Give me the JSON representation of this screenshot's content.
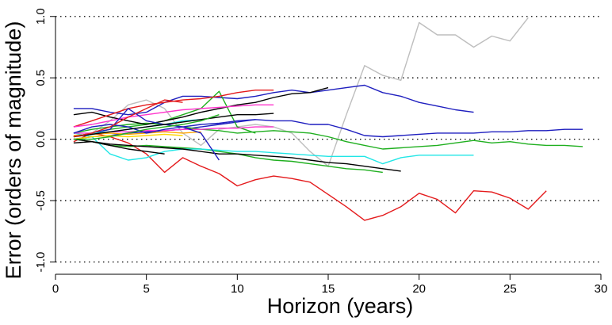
{
  "chart_data": {
    "type": "line",
    "title": "",
    "xlabel": "Horizon (years)",
    "ylabel": "Error (orders of magnitude)",
    "xlim": [
      0,
      30
    ],
    "ylim": [
      -1.1,
      1.05
    ],
    "x_ticks": [
      0,
      5,
      10,
      15,
      20,
      25,
      30
    ],
    "x_tick_labels": [
      "0",
      "5",
      "10",
      "15",
      "20",
      "25",
      "30"
    ],
    "y_ticks": [
      -1.0,
      -0.5,
      0.0,
      0.5,
      1.0
    ],
    "y_tick_labels": [
      "-1.0",
      "-0.5",
      "0.0",
      "0.5",
      "1.0"
    ],
    "reference_lines": [
      -1.0,
      -0.5,
      0.0,
      0.5,
      1.0
    ],
    "grid": false,
    "legend": "none",
    "series": [
      {
        "color": "#bebebe",
        "x": [
          1,
          2,
          3,
          4,
          5,
          6,
          7,
          8,
          9,
          10,
          11,
          12,
          13,
          14,
          15,
          16,
          17,
          18,
          19,
          20,
          21,
          22,
          23,
          24,
          25,
          26
        ],
        "y": [
          0.02,
          0.05,
          0.15,
          0.28,
          0.32,
          0.25,
          0.05,
          -0.05,
          0.08,
          0.1,
          0.12,
          0.1,
          0.05,
          -0.1,
          -0.22,
          0.2,
          0.6,
          0.52,
          0.48,
          0.95,
          0.85,
          0.85,
          0.75,
          0.84,
          0.8,
          0.99
        ]
      },
      {
        "color": "#e41a1c",
        "x": [
          1,
          2,
          3,
          4,
          5,
          6,
          7,
          8,
          9,
          10,
          11,
          12,
          13,
          14,
          15,
          16,
          17,
          18,
          19,
          20,
          21,
          22,
          23,
          24,
          25,
          26,
          27
        ],
        "y": [
          -0.02,
          0.05,
          0.02,
          -0.03,
          -0.12,
          -0.27,
          -0.15,
          -0.22,
          -0.28,
          -0.38,
          -0.33,
          -0.3,
          -0.32,
          -0.35,
          -0.45,
          -0.55,
          -0.66,
          -0.62,
          -0.55,
          -0.44,
          -0.49,
          -0.6,
          -0.42,
          -0.43,
          -0.48,
          -0.57,
          -0.42
        ]
      },
      {
        "color": "#1f1fbf",
        "x": [
          1,
          2,
          3,
          4,
          5,
          6,
          7,
          8,
          9,
          10,
          11,
          12,
          13,
          14,
          15,
          16,
          17,
          18,
          19,
          20,
          21,
          22,
          23,
          24,
          25,
          26,
          27,
          28,
          29
        ],
        "y": [
          0.0,
          0.02,
          0.03,
          0.05,
          0.06,
          0.07,
          0.08,
          0.1,
          0.12,
          0.14,
          0.16,
          0.15,
          0.15,
          0.12,
          0.12,
          0.08,
          0.03,
          0.02,
          0.03,
          0.04,
          0.05,
          0.05,
          0.05,
          0.06,
          0.06,
          0.07,
          0.07,
          0.08,
          0.08
        ]
      },
      {
        "color": "#1f1fbf",
        "x": [
          1,
          2,
          3,
          4,
          5,
          6,
          7,
          8,
          9,
          10,
          11,
          12,
          13,
          14,
          15,
          16,
          17,
          18,
          19,
          20,
          21,
          22,
          23
        ],
        "y": [
          0.25,
          0.25,
          0.22,
          0.2,
          0.22,
          0.3,
          0.35,
          0.35,
          0.34,
          0.33,
          0.35,
          0.38,
          0.4,
          0.38,
          0.4,
          0.42,
          0.44,
          0.38,
          0.35,
          0.3,
          0.27,
          0.24,
          0.22
        ]
      },
      {
        "color": "#1faf1f",
        "x": [
          1,
          2,
          3,
          4,
          5,
          6,
          7,
          8,
          9,
          10,
          11,
          12,
          13,
          14,
          15,
          16,
          17,
          18,
          19,
          20,
          21,
          22,
          23,
          24,
          25,
          26,
          27,
          28,
          29
        ],
        "y": [
          0.05,
          0.08,
          0.1,
          0.12,
          0.13,
          0.12,
          0.1,
          0.08,
          0.07,
          0.05,
          0.06,
          0.07,
          0.06,
          0.05,
          0.02,
          -0.02,
          -0.05,
          -0.08,
          -0.07,
          -0.06,
          -0.05,
          -0.03,
          -0.01,
          -0.03,
          -0.02,
          -0.04,
          -0.05,
          -0.05,
          -0.06
        ]
      },
      {
        "color": "#1faf1f",
        "x": [
          1,
          2,
          3,
          4,
          5,
          6,
          7,
          8,
          9,
          10,
          11,
          12,
          13,
          14,
          15,
          16,
          17,
          18
        ],
        "y": [
          0.0,
          -0.02,
          -0.05,
          -0.06,
          -0.05,
          -0.06,
          -0.07,
          -0.08,
          -0.1,
          -0.12,
          -0.15,
          -0.17,
          -0.18,
          -0.2,
          -0.22,
          -0.24,
          -0.25,
          -0.27
        ]
      },
      {
        "color": "#1faf1f",
        "x": [
          1,
          2,
          3,
          4,
          5,
          6,
          7,
          8,
          9,
          10,
          11
        ],
        "y": [
          0.02,
          0.05,
          0.08,
          0.1,
          0.12,
          0.15,
          0.2,
          0.25,
          0.39,
          0.1,
          0.05
        ]
      },
      {
        "color": "#22e6e6",
        "x": [
          1,
          2,
          3,
          4,
          5,
          6,
          7,
          8,
          9,
          10,
          11,
          12,
          13,
          14,
          15,
          16,
          17,
          18,
          19,
          20,
          21,
          22,
          23
        ],
        "y": [
          0.05,
          0.02,
          -0.12,
          -0.17,
          -0.15,
          -0.1,
          -0.08,
          -0.08,
          -0.09,
          -0.1,
          -0.1,
          -0.11,
          -0.12,
          -0.13,
          -0.14,
          -0.14,
          -0.14,
          -0.2,
          -0.15,
          -0.13,
          -0.13,
          -0.13,
          -0.13
        ]
      },
      {
        "color": "#000000",
        "x": [
          1,
          2,
          3,
          4,
          5,
          6,
          7,
          8,
          9,
          10,
          11,
          12,
          13,
          14,
          15,
          16,
          17,
          18,
          19
        ],
        "y": [
          0.0,
          -0.02,
          -0.04,
          -0.05,
          -0.06,
          -0.07,
          -0.08,
          -0.1,
          -0.12,
          -0.12,
          -0.13,
          -0.14,
          -0.15,
          -0.17,
          -0.19,
          -0.2,
          -0.22,
          -0.24,
          -0.26
        ]
      },
      {
        "color": "#000000",
        "x": [
          1,
          2,
          3,
          4,
          5,
          6,
          7,
          8,
          9,
          10,
          11,
          12,
          13,
          14,
          15
        ],
        "y": [
          0.2,
          0.22,
          0.18,
          0.15,
          0.12,
          0.15,
          0.18,
          0.22,
          0.25,
          0.28,
          0.3,
          0.34,
          0.37,
          0.38,
          0.42
        ]
      },
      {
        "color": "#000000",
        "x": [
          1,
          2,
          3,
          4,
          5,
          6
        ],
        "y": [
          -0.03,
          -0.02,
          -0.05,
          -0.08,
          -0.1,
          -0.12
        ]
      },
      {
        "color": "#e41a1c",
        "x": [
          1,
          2,
          3,
          4,
          5,
          6,
          7,
          8,
          9,
          10,
          11,
          12
        ],
        "y": [
          0.1,
          0.15,
          0.2,
          0.25,
          0.28,
          0.3,
          0.32,
          0.33,
          0.35,
          0.38,
          0.4,
          0.4
        ]
      },
      {
        "color": "#ff33cc",
        "x": [
          1,
          2,
          3,
          4,
          5,
          6,
          7,
          8,
          9,
          10,
          11,
          12
        ],
        "y": [
          0.1,
          0.12,
          0.15,
          0.18,
          0.2,
          0.22,
          0.24,
          0.25,
          0.26,
          0.27,
          0.28,
          0.28
        ]
      },
      {
        "color": "#ff33cc",
        "x": [
          1,
          2,
          3,
          4,
          5,
          6,
          7,
          8,
          9,
          10,
          11,
          12
        ],
        "y": [
          0.05,
          0.05,
          0.06,
          0.06,
          0.07,
          0.07,
          0.08,
          0.08,
          0.09,
          0.09,
          0.1,
          0.1
        ]
      },
      {
        "color": "#ffa500",
        "x": [
          1,
          2,
          3,
          4,
          5,
          6,
          7,
          8
        ],
        "y": [
          0.03,
          0.04,
          0.05,
          0.04,
          0.05,
          0.06,
          0.05,
          0.06
        ]
      },
      {
        "color": "#ffd700",
        "x": [
          1,
          2,
          3,
          4,
          5,
          6,
          7
        ],
        "y": [
          0.0,
          0.02,
          0.03,
          0.02,
          0.03,
          0.04,
          0.03
        ]
      },
      {
        "color": "#1f1fbf",
        "x": [
          1,
          2,
          3,
          4,
          5,
          6,
          7,
          8,
          9
        ],
        "y": [
          0.05,
          0.1,
          0.12,
          0.1,
          0.05,
          0.08,
          0.1,
          0.05,
          -0.17
        ]
      },
      {
        "color": "#1f1fbf",
        "x": [
          1,
          2,
          3,
          4,
          5,
          6,
          7,
          8,
          9,
          10,
          11
        ],
        "y": [
          0.02,
          0.05,
          0.08,
          0.25,
          0.15,
          0.12,
          0.1,
          0.12,
          0.13,
          0.15,
          0.16
        ]
      },
      {
        "color": "#22e6e6",
        "x": [
          1,
          2,
          3,
          4,
          5,
          6,
          7,
          8
        ],
        "y": [
          0.02,
          0.05,
          0.06,
          0.08,
          0.1,
          0.12,
          0.15,
          0.16
        ]
      },
      {
        "color": "#000000",
        "x": [
          1,
          2,
          3,
          4,
          5,
          6,
          7,
          8,
          9,
          10,
          11,
          12
        ],
        "y": [
          0.02,
          0.04,
          0.06,
          0.08,
          0.1,
          0.12,
          0.14,
          0.16,
          0.18,
          0.2,
          0.2,
          0.21
        ]
      },
      {
        "color": "#e41a1c",
        "x": [
          1,
          2,
          3,
          4,
          5,
          6,
          7
        ],
        "y": [
          0.02,
          0.05,
          0.1,
          0.18,
          0.25,
          0.32,
          0.3
        ]
      },
      {
        "color": "#1faf1f",
        "x": [
          1,
          2,
          3,
          4,
          5,
          6,
          7,
          8,
          9
        ],
        "y": [
          0.0,
          0.0,
          0.02,
          0.05,
          0.08,
          0.1,
          0.12,
          0.15,
          0.2
        ]
      }
    ]
  }
}
